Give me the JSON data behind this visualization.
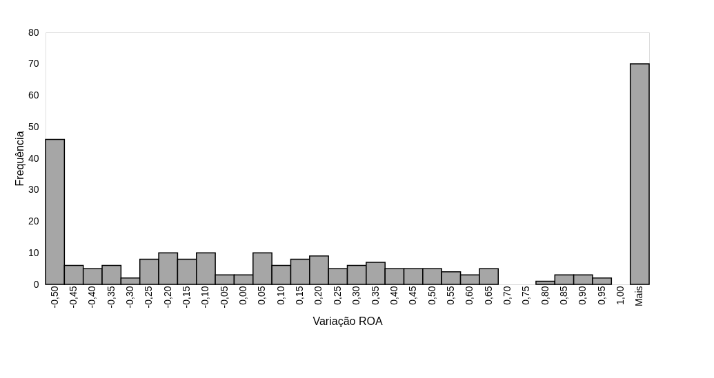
{
  "chart_data": {
    "type": "bar",
    "xlabel": "Variação ROA",
    "ylabel": "Frequência",
    "categories": [
      "-0,50",
      "-0,45",
      "-0,40",
      "-0,35",
      "-0,30",
      "-0,25",
      "-0,20",
      "-0,15",
      "-0,10",
      "-0,05",
      "0,00",
      "0,05",
      "0,10",
      "0,15",
      "0,20",
      "0,25",
      "0,30",
      "0,35",
      "0,40",
      "0,45",
      "0,50",
      "0,55",
      "0,60",
      "0,65",
      "0,70",
      "0,75",
      "0,80",
      "0,85",
      "0,90",
      "0,95",
      "1,00",
      "Mais"
    ],
    "values": [
      46,
      6,
      5,
      6,
      2,
      8,
      10,
      8,
      10,
      3,
      3,
      10,
      6,
      8,
      9,
      5,
      6,
      7,
      5,
      5,
      5,
      4,
      3,
      5,
      0,
      0,
      1,
      3,
      3,
      2,
      0,
      70
    ],
    "color": "#a6a6a6",
    "ylim": [
      0,
      80
    ],
    "yticks": [
      0,
      10,
      20,
      30,
      40,
      50,
      60,
      70,
      80
    ],
    "grid": false
  }
}
